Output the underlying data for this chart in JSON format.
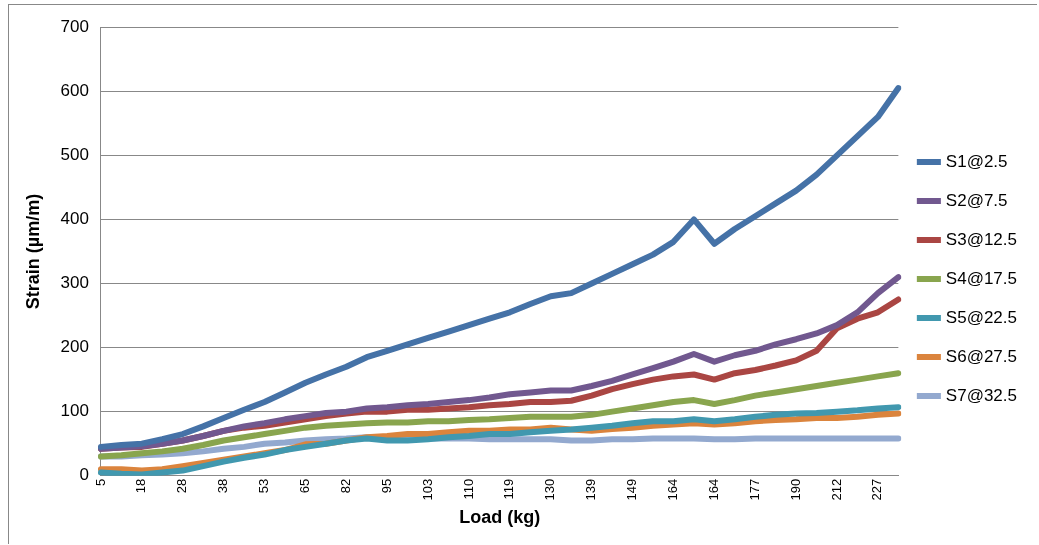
{
  "chart_data": {
    "type": "line",
    "xlabel": "Load (kg)",
    "ylabel": "Strain (µm/m)",
    "categories": [
      "5",
      null,
      "18",
      null,
      "28",
      null,
      "38",
      null,
      "53",
      null,
      "65",
      null,
      "82",
      null,
      "95",
      null,
      "103",
      null,
      "110",
      null,
      "119",
      null,
      "130",
      null,
      "139",
      null,
      "149",
      null,
      "164",
      null,
      "164",
      null,
      "177",
      null,
      "190",
      null,
      "212",
      null,
      "227",
      null
    ],
    "ylim": [
      0,
      700
    ],
    "yticks": [
      0,
      100,
      200,
      300,
      400,
      500,
      600,
      700
    ],
    "grid": "y",
    "legend": "right",
    "marker": "none",
    "line_style": "solid",
    "series": [
      {
        "name": "S1@2.5",
        "color": "#4572a7",
        "values": [
          45,
          48,
          50,
          57,
          65,
          77,
          90,
          103,
          115,
          130,
          145,
          158,
          170,
          185,
          195,
          205,
          215,
          225,
          235,
          245,
          255,
          268,
          280,
          285,
          300,
          315,
          330,
          345,
          365,
          400,
          362,
          385,
          405,
          425,
          445,
          470,
          500,
          530,
          560,
          605
        ]
      },
      {
        "name": "S2@7.5",
        "color": "#71588f",
        "values": [
          42,
          44,
          46,
          50,
          55,
          62,
          70,
          77,
          82,
          88,
          93,
          98,
          100,
          105,
          107,
          110,
          112,
          115,
          118,
          122,
          127,
          130,
          133,
          133,
          140,
          148,
          158,
          168,
          178,
          190,
          178,
          188,
          195,
          205,
          213,
          222,
          235,
          255,
          285,
          310
        ]
      },
      {
        "name": "S3@12.5",
        "color": "#aa4643",
        "values": [
          42,
          44,
          45,
          50,
          55,
          62,
          70,
          75,
          78,
          83,
          88,
          93,
          97,
          100,
          100,
          103,
          103,
          105,
          107,
          110,
          112,
          115,
          115,
          117,
          125,
          135,
          143,
          150,
          155,
          158,
          150,
          160,
          165,
          172,
          180,
          195,
          230,
          245,
          255,
          275
        ]
      },
      {
        "name": "S4@17.5",
        "color": "#89a54e",
        "values": [
          30,
          32,
          35,
          38,
          42,
          48,
          55,
          60,
          65,
          70,
          75,
          78,
          80,
          82,
          83,
          83,
          85,
          85,
          87,
          88,
          90,
          92,
          92,
          92,
          95,
          100,
          105,
          110,
          115,
          118,
          112,
          118,
          125,
          130,
          135,
          140,
          145,
          150,
          155,
          160
        ]
      },
      {
        "name": "S5@22.5",
        "color": "#4198af",
        "values": [
          5,
          3,
          2,
          5,
          8,
          15,
          22,
          28,
          33,
          40,
          45,
          50,
          55,
          58,
          55,
          55,
          57,
          60,
          62,
          65,
          65,
          68,
          70,
          72,
          75,
          78,
          82,
          85,
          85,
          88,
          85,
          88,
          92,
          95,
          97,
          98,
          100,
          102,
          105,
          107
        ]
      },
      {
        "name": "S6@27.5",
        "color": "#db843d",
        "values": [
          10,
          10,
          8,
          10,
          15,
          20,
          25,
          30,
          35,
          40,
          49,
          50,
          55,
          60,
          62,
          65,
          65,
          68,
          70,
          70,
          72,
          72,
          75,
          72,
          70,
          73,
          75,
          78,
          80,
          82,
          80,
          82,
          85,
          87,
          88,
          90,
          90,
          92,
          95,
          97
        ]
      },
      {
        "name": "S7@32.5",
        "color": "#93a9cf",
        "values": [
          30,
          30,
          32,
          33,
          35,
          38,
          42,
          45,
          50,
          52,
          55,
          57,
          58,
          60,
          60,
          60,
          58,
          58,
          58,
          57,
          57,
          57,
          57,
          55,
          55,
          57,
          57,
          58,
          58,
          58,
          57,
          57,
          58,
          58,
          58,
          58,
          58,
          58,
          58,
          58
        ]
      }
    ]
  }
}
